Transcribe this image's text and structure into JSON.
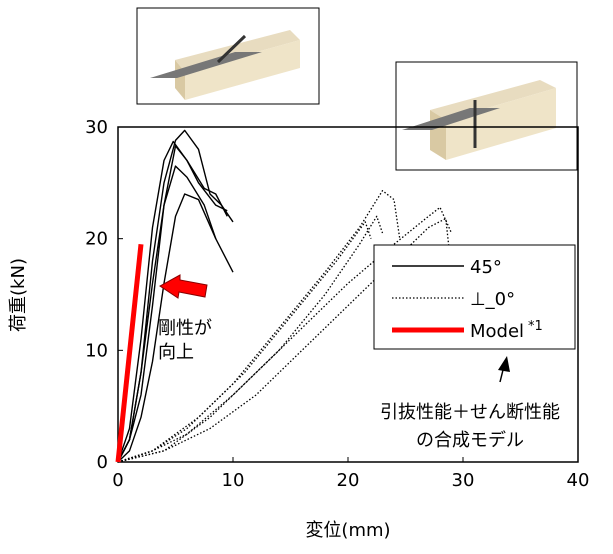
{
  "chart_data": {
    "type": "line",
    "x_label": "変位(mm)",
    "y_label": "荷重(kN)",
    "xlim": [
      0,
      40
    ],
    "xticks": [
      0,
      10,
      20,
      30,
      40
    ],
    "ylim": [
      0,
      30
    ],
    "yticks": [
      0,
      10,
      20,
      30
    ],
    "grid": false,
    "series": [
      {
        "name": "45°",
        "color": "#000000",
        "style": "solid",
        "curves": [
          {
            "x": [
              0,
              1,
              2,
              3,
              4,
              5,
              5.8,
              7,
              8,
              9,
              10
            ],
            "values": [
              0,
              2,
              8,
              18,
              25,
              28.8,
              29.7,
              28,
              24,
              23,
              21.5
            ]
          },
          {
            "x": [
              0,
              1,
              2,
              3,
              4,
              4.8,
              6,
              7,
              8.5,
              9.5
            ],
            "values": [
              0,
              3,
              11,
              21,
              27,
              28.7,
              27,
              25,
              23,
              22.5
            ]
          },
          {
            "x": [
              0,
              1,
              2,
              3,
              4,
              5,
              6,
              7.5,
              8.5
            ],
            "values": [
              0,
              2,
              8,
              16,
              23,
              26.5,
              25.5,
              23,
              20
            ]
          },
          {
            "x": [
              0,
              1,
              2,
              3,
              4,
              5,
              5.8,
              7,
              8.5,
              10
            ],
            "values": [
              0,
              1,
              4,
              9,
              16,
              22,
              24,
              23.5,
              20,
              17
            ]
          },
          {
            "x": [
              0,
              1,
              2,
              3,
              4,
              5,
              6,
              7.5,
              8.5,
              9.5
            ],
            "values": [
              0,
              2,
              6,
              14,
              23,
              28.3,
              27,
              24.5,
              24,
              22
            ]
          }
        ]
      },
      {
        "name": "⊥_0°",
        "color": "#000000",
        "style": "dotted",
        "curves": [
          {
            "x": [
              0,
              3,
              6,
              10,
              14,
              18,
              21,
              23,
              24,
              24.5
            ],
            "values": [
              0,
              1,
              3,
              7,
              12,
              17,
              21,
              24.3,
              23.5,
              20
            ]
          },
          {
            "x": [
              0,
              3,
              6,
              10,
              14,
              18,
              21,
              22.5,
              23
            ],
            "values": [
              0,
              1,
              2.5,
              6,
              10,
              15,
              19.5,
              22,
              20.5
            ]
          },
          {
            "x": [
              0,
              4,
              8,
              12,
              16,
              20,
              24,
              27,
              28,
              29
            ],
            "values": [
              0,
              1,
              4,
              8,
              12,
              16,
              19.5,
              22,
              22.8,
              20.5
            ]
          },
          {
            "x": [
              0,
              4,
              8,
              12,
              16,
              20,
              24,
              27,
              28.5,
              28.8
            ],
            "values": [
              0,
              1,
              3,
              6,
              10,
              14,
              18,
              21,
              21.8,
              19
            ]
          },
          {
            "x": [
              0,
              3,
              7,
              11,
              15,
              19,
              21.5,
              22
            ],
            "values": [
              0,
              1,
              4,
              8,
              13,
              18,
              21.5,
              20
            ]
          }
        ]
      },
      {
        "name": "Model",
        "name_note": "*1",
        "color": "#ff0000",
        "style": "thick",
        "curves": [
          {
            "x": [
              0,
              2
            ],
            "values": [
              0,
              19.5
            ]
          }
        ]
      }
    ],
    "annotations": [
      {
        "lines": [
          "剛性が",
          "向上"
        ]
      },
      {
        "lines": [
          "引抜性能＋せん断性能",
          "の合成モデル"
        ]
      }
    ]
  }
}
